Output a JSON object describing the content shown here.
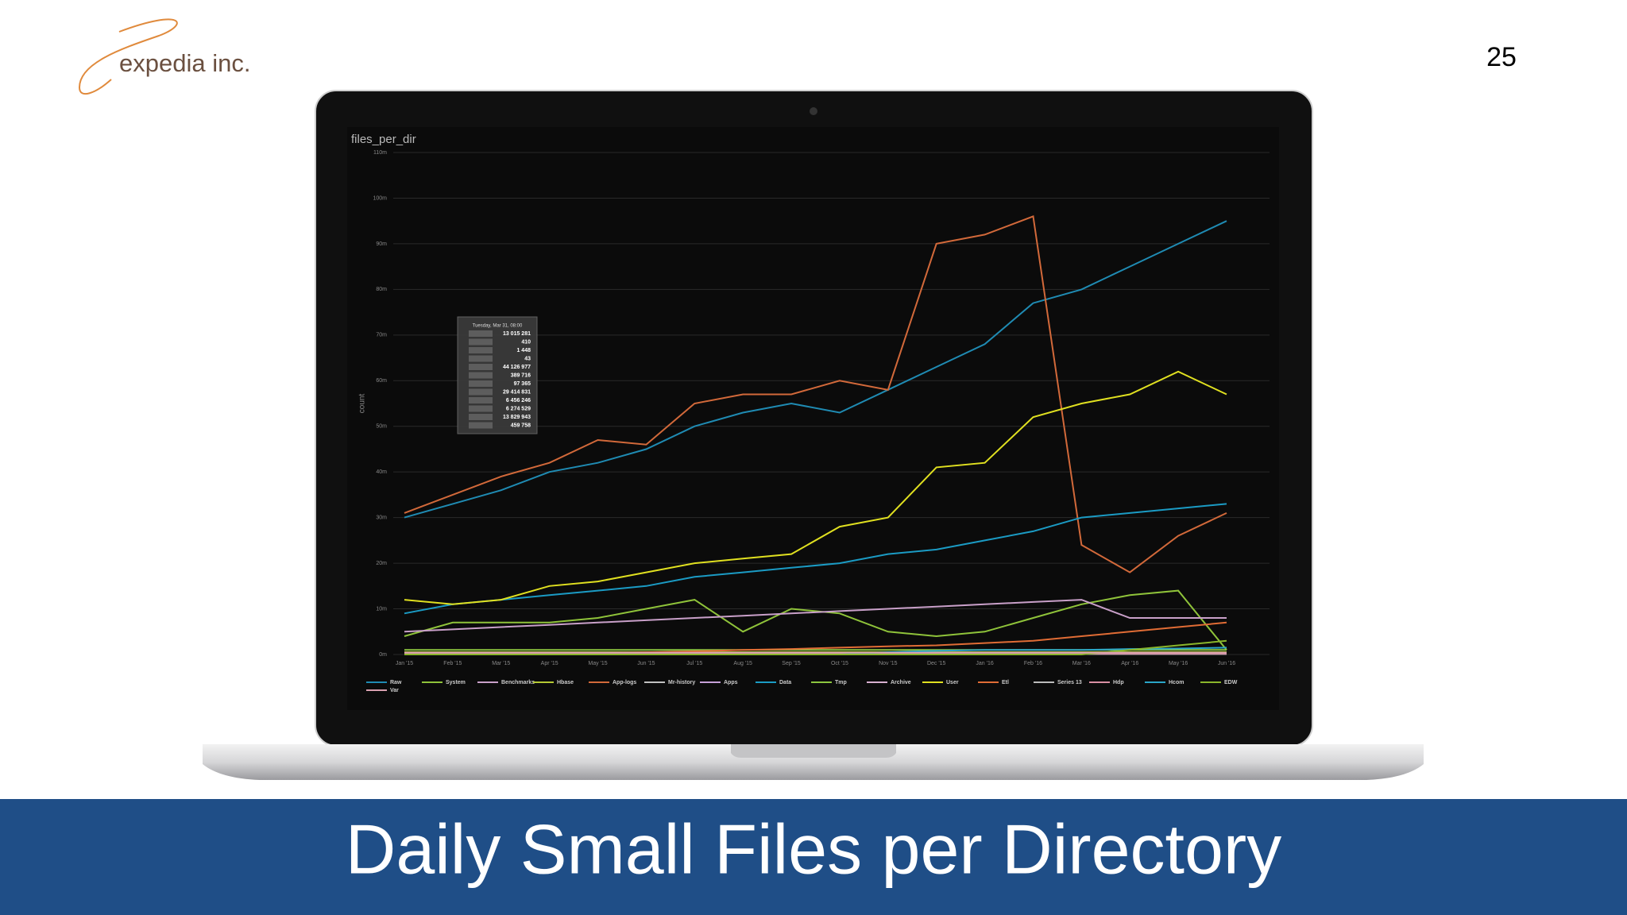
{
  "slide": {
    "logo": "expedia inc.",
    "page_number": "25",
    "caption": "Daily Small Files per Directory"
  },
  "chart_data": {
    "type": "line",
    "title": "files_per_dir",
    "y_label": "count",
    "categories": [
      "Jan '15",
      "Feb '15",
      "Mar '15",
      "Apr '15",
      "May '15",
      "Jun '15",
      "Jul '15",
      "Aug '15",
      "Sep '15",
      "Oct '15",
      "Nov '15",
      "Dec '15",
      "Jan '16",
      "Feb '16",
      "Mar '16",
      "Apr '16",
      "May '16",
      "Jun '16"
    ],
    "ylim": [
      0,
      110
    ],
    "yticks": [
      {
        "value": 0,
        "label": "0m"
      },
      {
        "value": 10,
        "label": "10m"
      },
      {
        "value": 20,
        "label": "20m"
      },
      {
        "value": 30,
        "label": "30m"
      },
      {
        "value": 40,
        "label": "40m"
      },
      {
        "value": 50,
        "label": "50m"
      },
      {
        "value": 60,
        "label": "60m"
      },
      {
        "value": 70,
        "label": "70m"
      },
      {
        "value": 80,
        "label": "80m"
      },
      {
        "value": 90,
        "label": "90m"
      },
      {
        "value": 100,
        "label": "100m"
      },
      {
        "value": 110,
        "label": "110m"
      }
    ],
    "grid": true,
    "series": [
      {
        "name": "Raw",
        "color": "#1f8bb3",
        "values": [
          30,
          33,
          36,
          40,
          42,
          45,
          50,
          53,
          55,
          53,
          58,
          63,
          68,
          77,
          80,
          85,
          90,
          95
        ]
      },
      {
        "name": "System",
        "color": "#8fc33a",
        "values": [
          4,
          7,
          7,
          7,
          8,
          10,
          12,
          5,
          10,
          9,
          5,
          4,
          5,
          8,
          11,
          13,
          14,
          1
        ]
      },
      {
        "name": "Benchmarks",
        "color": "#c9a0c9",
        "values": [
          5,
          5.5,
          6,
          6.5,
          7,
          7.5,
          8,
          8.5,
          9,
          9.5,
          10,
          10.5,
          11,
          11.5,
          12,
          8,
          8,
          8
        ]
      },
      {
        "name": "Hbase",
        "color": "#b5c934",
        "values": [
          0.5,
          0.5,
          0.5,
          0.5,
          0.5,
          0.5,
          0.5,
          0.5,
          0.5,
          0.5,
          0.5,
          0.5,
          0.5,
          0.5,
          0.5,
          0.5,
          0.5,
          0.5
        ]
      },
      {
        "name": "App-logs",
        "color": "#d2693a",
        "values": [
          31,
          35,
          39,
          42,
          47,
          46,
          55,
          57,
          57,
          60,
          58,
          90,
          92,
          96,
          24,
          18,
          26,
          31
        ]
      },
      {
        "name": "Mr-history",
        "color": "#c0c0c0",
        "values": [
          0.2,
          0.2,
          0.2,
          0.2,
          0.2,
          0.2,
          0.2,
          0.2,
          0.2,
          0.2,
          0.2,
          0.2,
          0.2,
          0.2,
          0.2,
          0.2,
          0.2,
          0.2
        ]
      },
      {
        "name": "Apps",
        "color": "#c6a0d8",
        "values": [
          0.3,
          0.3,
          0.3,
          0.3,
          0.3,
          0.3,
          0.3,
          0.3,
          0.3,
          0.3,
          0.3,
          0.3,
          0.3,
          0.3,
          0.3,
          0.3,
          0.3,
          0.3
        ]
      },
      {
        "name": "Data",
        "color": "#1b9bc4",
        "values": [
          9,
          11,
          12,
          13,
          14,
          15,
          17,
          18,
          19,
          20,
          22,
          23,
          25,
          27,
          30,
          31,
          32,
          33
        ]
      },
      {
        "name": "Tmp",
        "color": "#8cc63f",
        "values": [
          1,
          1,
          1,
          1,
          1,
          1,
          1,
          1,
          1,
          1,
          1,
          1,
          1,
          1,
          1,
          1,
          1,
          1
        ]
      },
      {
        "name": "Archive",
        "color": "#d8b0d0",
        "values": [
          0.1,
          0.1,
          0.1,
          0.1,
          0.1,
          0.1,
          0.1,
          0.1,
          0.1,
          0.1,
          0.1,
          0.1,
          0.1,
          0.1,
          0.1,
          0.1,
          0.1,
          0.1
        ]
      },
      {
        "name": "User",
        "color": "#e0e020",
        "values": [
          12,
          11,
          12,
          15,
          16,
          18,
          20,
          21,
          22,
          28,
          30,
          41,
          42,
          52,
          55,
          57,
          62,
          57
        ]
      },
      {
        "name": "Etl",
        "color": "#e06c35",
        "values": [
          0,
          0,
          0,
          0.2,
          0.3,
          0.5,
          0.7,
          1,
          1.2,
          1.5,
          1.8,
          2,
          2.5,
          3,
          4,
          5,
          6,
          7
        ]
      },
      {
        "name": "Series 13",
        "color": "#bbbbbb",
        "values": [
          0.1,
          0.1,
          0.1,
          0.1,
          0.1,
          0.1,
          0.1,
          0.1,
          0.1,
          0.1,
          0.1,
          0.1,
          0.1,
          0.1,
          0.1,
          0.1,
          0.1,
          0.1
        ]
      },
      {
        "name": "Hdp",
        "color": "#d98fa3",
        "values": [
          0.2,
          0.2,
          0.2,
          0.2,
          0.2,
          0.2,
          0.2,
          0.2,
          0.2,
          0.2,
          0.2,
          0.2,
          0.2,
          0.2,
          0.2,
          0.2,
          0.2,
          0.2
        ]
      },
      {
        "name": "Hcom",
        "color": "#2aa6c8",
        "values": [
          0,
          0,
          0,
          0,
          0,
          0,
          0,
          0,
          0,
          0,
          0.5,
          0.8,
          1,
          1,
          1,
          1.2,
          1.3,
          1.5
        ]
      },
      {
        "name": "EDW",
        "color": "#8ab62b",
        "values": [
          0,
          0,
          0,
          0,
          0,
          0,
          0,
          0,
          0,
          0,
          0,
          0,
          0,
          0,
          0,
          1,
          2,
          3
        ]
      },
      {
        "name": "Var",
        "color": "#d9a0b0",
        "values": [
          0.4,
          0.4,
          0.4,
          0.4,
          0.4,
          0.4,
          0.4,
          0.4,
          0.4,
          0.4,
          0.4,
          0.4,
          0.4,
          0.4,
          0.4,
          0.4,
          0.4,
          0.4
        ]
      }
    ],
    "tooltip": {
      "title": "Tuesday, Mar 31, 08:00",
      "values": [
        "13 015 281",
        "410",
        "1 448",
        "43",
        "44 126 977",
        "389 716",
        "97 365",
        "29 414 831",
        "6 456 246",
        "6 274 529",
        "13 829 943",
        "459 758"
      ]
    }
  }
}
